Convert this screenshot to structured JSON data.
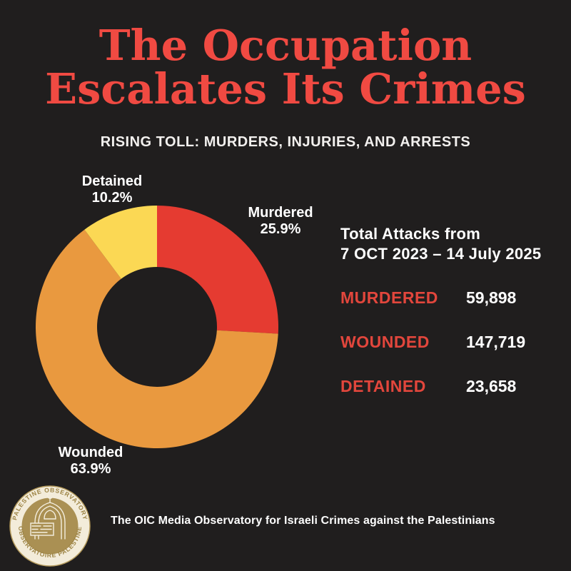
{
  "page": {
    "background": "#201e1e"
  },
  "title": {
    "line1": "The Occupation",
    "line2": "Escalates Its Crimes",
    "color": "#f04a42"
  },
  "subtitle": "RISING TOLL: MURDERS, INJURIES, AND ARRESTS",
  "chart_data": {
    "type": "pie",
    "subtype": "donut",
    "start_angle": "12 o'clock, clockwise",
    "slices": [
      {
        "label": "Murdered",
        "percent": 25.9,
        "percent_text": "25.9%",
        "value": 59898,
        "color": "#e53b31"
      },
      {
        "label": "Wounded",
        "percent": 63.9,
        "percent_text": "63.9%",
        "value": 147719,
        "color": "#e9993f"
      },
      {
        "label": "Detained",
        "percent": 10.2,
        "percent_text": "10.2%",
        "value": 23658,
        "color": "#fbd854"
      }
    ],
    "legend_position": "labels around donut",
    "grid": false
  },
  "stats": {
    "heading_line1": "Total Attacks from",
    "heading_line2": "7 OCT 2023 – 14 July 2025",
    "label_color": "#e2463c",
    "value_color": "#ffffff",
    "rows": [
      {
        "label": "MURDERED",
        "value": "59,898"
      },
      {
        "label": "WOUNDED",
        "value": "147,719"
      },
      {
        "label": "DETAINED",
        "value": "23,658"
      }
    ]
  },
  "footer": {
    "note": "The OIC Media Observatory for Israeli Crimes against the Palestinians",
    "seal": {
      "arc_top": "PALESTINE OBSERVATORY",
      "arc_bottom": "OBSERVATOIRE PALESTINE",
      "gold": "#aa9053",
      "cream": "#f3ecda",
      "text_gold": "#9d8445"
    }
  }
}
